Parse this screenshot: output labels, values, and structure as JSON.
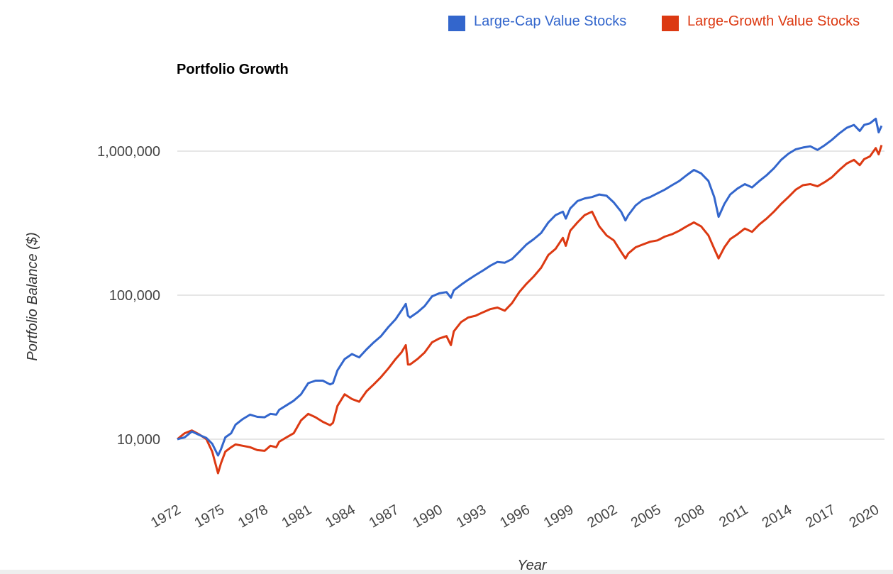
{
  "chart_data": {
    "type": "line",
    "title": "Portfolio Growth",
    "xlabel": "Year",
    "ylabel": "Portfolio Balance ($)",
    "yscale": "log",
    "ylim": [
      5000,
      3000000
    ],
    "xlim": [
      1972,
      2020.6
    ],
    "x_ticks": [
      "1972",
      "1975",
      "1978",
      "1981",
      "1984",
      "1987",
      "1990",
      "1993",
      "1996",
      "1999",
      "2002",
      "2005",
      "2008",
      "2011",
      "2014",
      "2017",
      "2020"
    ],
    "y_ticks": [
      "10,000",
      "100,000",
      "1,000,000"
    ],
    "y_tick_values": [
      10000,
      100000,
      1000000
    ],
    "grid": true,
    "legend_position": "top-right",
    "series": [
      {
        "name": "Large-Cap Value Stocks",
        "color": "#3366cc",
        "points": [
          [
            1972.0,
            10000
          ],
          [
            1972.5,
            10300
          ],
          [
            1973.0,
            11300
          ],
          [
            1973.5,
            10700
          ],
          [
            1974.0,
            10200
          ],
          [
            1974.4,
            9300
          ],
          [
            1974.8,
            7700
          ],
          [
            1975.0,
            8500
          ],
          [
            1975.3,
            10300
          ],
          [
            1975.7,
            11000
          ],
          [
            1976.0,
            12600
          ],
          [
            1976.5,
            13800
          ],
          [
            1977.0,
            14800
          ],
          [
            1977.5,
            14300
          ],
          [
            1978.0,
            14200
          ],
          [
            1978.4,
            15000
          ],
          [
            1978.8,
            14800
          ],
          [
            1979.0,
            16000
          ],
          [
            1979.5,
            17200
          ],
          [
            1980.0,
            18500
          ],
          [
            1980.5,
            20500
          ],
          [
            1981.0,
            24500
          ],
          [
            1981.5,
            25500
          ],
          [
            1982.0,
            25500
          ],
          [
            1982.5,
            24000
          ],
          [
            1982.7,
            24500
          ],
          [
            1983.0,
            30000
          ],
          [
            1983.5,
            36000
          ],
          [
            1984.0,
            39000
          ],
          [
            1984.5,
            37000
          ],
          [
            1985.0,
            42000
          ],
          [
            1985.5,
            47000
          ],
          [
            1986.0,
            52000
          ],
          [
            1986.5,
            60000
          ],
          [
            1987.0,
            68000
          ],
          [
            1987.4,
            78000
          ],
          [
            1987.7,
            87000
          ],
          [
            1987.85,
            72000
          ],
          [
            1988.0,
            70000
          ],
          [
            1988.5,
            76000
          ],
          [
            1989.0,
            84000
          ],
          [
            1989.5,
            98000
          ],
          [
            1990.0,
            103000
          ],
          [
            1990.5,
            105000
          ],
          [
            1990.8,
            96000
          ],
          [
            1991.0,
            108000
          ],
          [
            1991.5,
            118000
          ],
          [
            1992.0,
            128000
          ],
          [
            1992.5,
            138000
          ],
          [
            1993.0,
            148000
          ],
          [
            1993.5,
            160000
          ],
          [
            1994.0,
            170000
          ],
          [
            1994.5,
            168000
          ],
          [
            1995.0,
            178000
          ],
          [
            1995.5,
            200000
          ],
          [
            1996.0,
            225000
          ],
          [
            1996.5,
            245000
          ],
          [
            1997.0,
            270000
          ],
          [
            1997.5,
            320000
          ],
          [
            1998.0,
            360000
          ],
          [
            1998.5,
            380000
          ],
          [
            1998.7,
            340000
          ],
          [
            1999.0,
            400000
          ],
          [
            1999.5,
            450000
          ],
          [
            2000.0,
            470000
          ],
          [
            2000.5,
            480000
          ],
          [
            2001.0,
            500000
          ],
          [
            2001.5,
            490000
          ],
          [
            2002.0,
            440000
          ],
          [
            2002.5,
            380000
          ],
          [
            2002.8,
            330000
          ],
          [
            2003.0,
            360000
          ],
          [
            2003.5,
            420000
          ],
          [
            2004.0,
            460000
          ],
          [
            2004.5,
            480000
          ],
          [
            2005.0,
            510000
          ],
          [
            2005.5,
            540000
          ],
          [
            2006.0,
            580000
          ],
          [
            2006.5,
            620000
          ],
          [
            2007.0,
            680000
          ],
          [
            2007.5,
            740000
          ],
          [
            2008.0,
            700000
          ],
          [
            2008.5,
            620000
          ],
          [
            2008.9,
            480000
          ],
          [
            2009.2,
            350000
          ],
          [
            2009.6,
            430000
          ],
          [
            2010.0,
            500000
          ],
          [
            2010.5,
            550000
          ],
          [
            2011.0,
            590000
          ],
          [
            2011.5,
            560000
          ],
          [
            2012.0,
            620000
          ],
          [
            2012.5,
            680000
          ],
          [
            2013.0,
            760000
          ],
          [
            2013.5,
            870000
          ],
          [
            2014.0,
            960000
          ],
          [
            2014.5,
            1030000
          ],
          [
            2015.0,
            1060000
          ],
          [
            2015.5,
            1080000
          ],
          [
            2016.0,
            1020000
          ],
          [
            2016.5,
            1100000
          ],
          [
            2017.0,
            1200000
          ],
          [
            2017.5,
            1330000
          ],
          [
            2018.0,
            1450000
          ],
          [
            2018.5,
            1520000
          ],
          [
            2018.9,
            1380000
          ],
          [
            2019.2,
            1520000
          ],
          [
            2019.6,
            1560000
          ],
          [
            2020.0,
            1680000
          ],
          [
            2020.2,
            1350000
          ],
          [
            2020.4,
            1500000
          ]
        ]
      },
      {
        "name": "Large-Growth Value Stocks",
        "color": "#dc3912",
        "points": [
          [
            1972.0,
            10000
          ],
          [
            1972.5,
            11000
          ],
          [
            1973.0,
            11500
          ],
          [
            1973.5,
            10800
          ],
          [
            1974.0,
            10000
          ],
          [
            1974.4,
            8200
          ],
          [
            1974.8,
            5800
          ],
          [
            1975.0,
            6800
          ],
          [
            1975.3,
            8200
          ],
          [
            1975.7,
            8800
          ],
          [
            1976.0,
            9200
          ],
          [
            1976.5,
            9000
          ],
          [
            1977.0,
            8800
          ],
          [
            1977.5,
            8400
          ],
          [
            1978.0,
            8300
          ],
          [
            1978.4,
            9000
          ],
          [
            1978.8,
            8800
          ],
          [
            1979.0,
            9600
          ],
          [
            1979.5,
            10300
          ],
          [
            1980.0,
            11000
          ],
          [
            1980.5,
            13500
          ],
          [
            1981.0,
            15000
          ],
          [
            1981.5,
            14200
          ],
          [
            1982.0,
            13200
          ],
          [
            1982.5,
            12500
          ],
          [
            1982.7,
            13000
          ],
          [
            1983.0,
            17000
          ],
          [
            1983.5,
            20500
          ],
          [
            1984.0,
            19000
          ],
          [
            1984.5,
            18200
          ],
          [
            1985.0,
            21500
          ],
          [
            1985.5,
            24000
          ],
          [
            1986.0,
            27000
          ],
          [
            1986.5,
            31000
          ],
          [
            1987.0,
            36000
          ],
          [
            1987.4,
            40000
          ],
          [
            1987.7,
            45000
          ],
          [
            1987.85,
            33000
          ],
          [
            1988.0,
            33000
          ],
          [
            1988.5,
            36000
          ],
          [
            1989.0,
            40000
          ],
          [
            1989.5,
            47000
          ],
          [
            1990.0,
            50000
          ],
          [
            1990.5,
            52000
          ],
          [
            1990.8,
            45000
          ],
          [
            1991.0,
            56000
          ],
          [
            1991.5,
            65000
          ],
          [
            1992.0,
            70000
          ],
          [
            1992.5,
            72000
          ],
          [
            1993.0,
            76000
          ],
          [
            1993.5,
            80000
          ],
          [
            1994.0,
            82000
          ],
          [
            1994.5,
            78000
          ],
          [
            1995.0,
            88000
          ],
          [
            1995.5,
            105000
          ],
          [
            1996.0,
            120000
          ],
          [
            1996.5,
            135000
          ],
          [
            1997.0,
            155000
          ],
          [
            1997.5,
            190000
          ],
          [
            1998.0,
            210000
          ],
          [
            1998.5,
            250000
          ],
          [
            1998.7,
            220000
          ],
          [
            1999.0,
            280000
          ],
          [
            1999.5,
            320000
          ],
          [
            2000.0,
            360000
          ],
          [
            2000.5,
            380000
          ],
          [
            2001.0,
            300000
          ],
          [
            2001.5,
            260000
          ],
          [
            2002.0,
            240000
          ],
          [
            2002.5,
            200000
          ],
          [
            2002.8,
            180000
          ],
          [
            2003.0,
            195000
          ],
          [
            2003.5,
            215000
          ],
          [
            2004.0,
            225000
          ],
          [
            2004.5,
            235000
          ],
          [
            2005.0,
            240000
          ],
          [
            2005.5,
            255000
          ],
          [
            2006.0,
            265000
          ],
          [
            2006.5,
            280000
          ],
          [
            2007.0,
            300000
          ],
          [
            2007.5,
            320000
          ],
          [
            2008.0,
            300000
          ],
          [
            2008.5,
            260000
          ],
          [
            2008.9,
            210000
          ],
          [
            2009.2,
            180000
          ],
          [
            2009.6,
            215000
          ],
          [
            2010.0,
            245000
          ],
          [
            2010.5,
            265000
          ],
          [
            2011.0,
            290000
          ],
          [
            2011.5,
            275000
          ],
          [
            2012.0,
            310000
          ],
          [
            2012.5,
            340000
          ],
          [
            2013.0,
            380000
          ],
          [
            2013.5,
            430000
          ],
          [
            2014.0,
            480000
          ],
          [
            2014.5,
            540000
          ],
          [
            2015.0,
            580000
          ],
          [
            2015.5,
            590000
          ],
          [
            2016.0,
            570000
          ],
          [
            2016.5,
            610000
          ],
          [
            2017.0,
            660000
          ],
          [
            2017.5,
            740000
          ],
          [
            2018.0,
            820000
          ],
          [
            2018.5,
            870000
          ],
          [
            2018.9,
            800000
          ],
          [
            2019.2,
            880000
          ],
          [
            2019.6,
            920000
          ],
          [
            2020.0,
            1050000
          ],
          [
            2020.2,
            950000
          ],
          [
            2020.4,
            1100000
          ]
        ]
      }
    ]
  }
}
